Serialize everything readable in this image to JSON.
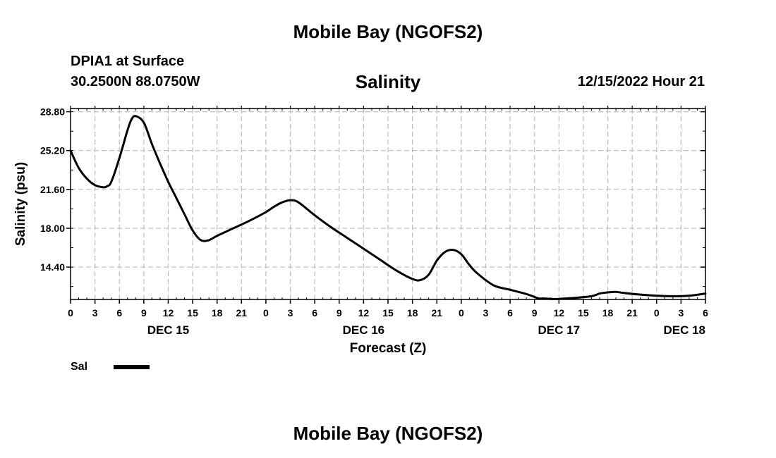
{
  "header": {
    "title": "Mobile Bay (NGOFS2)",
    "station_name": "DPIA1 at Surface",
    "coords": "30.2500N  88.0750W",
    "run_time": "12/15/2022 Hour 21",
    "footer_title": "Mobile Bay (NGOFS2)"
  },
  "chart_data": {
    "type": "line",
    "title": "Salinity",
    "xlabel": "Forecast (Z)",
    "ylabel": "Salinity (psu)",
    "xlim": [
      0,
      78
    ],
    "ylim": [
      11.4,
      29.1
    ],
    "yticks": [
      "28.80",
      "25.20",
      "21.60",
      "18.00",
      "14.40"
    ],
    "ytick_values": [
      28.8,
      25.2,
      21.6,
      18.0,
      14.4
    ],
    "xticks": [
      "0",
      "3",
      "6",
      "9",
      "12",
      "15",
      "18",
      "21",
      "0",
      "3",
      "6",
      "9",
      "12",
      "15",
      "18",
      "21",
      "0",
      "3",
      "6",
      "9",
      "12",
      "15",
      "18",
      "21",
      "0",
      "3",
      "6"
    ],
    "day_labels": [
      {
        "label": "DEC 15",
        "x": 12
      },
      {
        "label": "DEC 16",
        "x": 36
      },
      {
        "label": "DEC 17",
        "x": 60
      },
      {
        "label": "DEC 18",
        "x": 75
      }
    ],
    "grid": true,
    "series": [
      {
        "name": "Sal",
        "color": "#000000",
        "x": [
          0,
          1,
          2,
          3,
          4,
          4.5,
          5,
          6,
          7,
          7.5,
          8,
          9,
          10,
          11,
          12,
          13,
          14,
          15,
          16,
          17,
          18,
          20,
          22,
          24,
          25,
          26,
          27,
          28,
          30,
          32,
          34,
          36,
          38,
          40,
          42,
          43,
          44,
          45,
          46,
          47,
          48,
          49,
          50,
          52,
          54,
          56,
          57.5,
          58,
          59,
          60,
          61,
          62,
          64,
          65,
          66,
          67,
          68,
          70,
          72,
          74,
          76,
          78
        ],
        "values": [
          25.2,
          23.6,
          22.6,
          22.0,
          21.8,
          21.9,
          22.3,
          24.5,
          27.1,
          28.1,
          28.4,
          27.8,
          25.8,
          24.0,
          22.3,
          20.8,
          19.3,
          17.8,
          16.9,
          16.9,
          17.3,
          18.0,
          18.7,
          19.5,
          20.0,
          20.4,
          20.6,
          20.4,
          19.2,
          18.1,
          17.1,
          16.1,
          15.1,
          14.1,
          13.3,
          13.2,
          13.7,
          15.0,
          15.8,
          16.0,
          15.6,
          14.6,
          13.8,
          12.7,
          12.3,
          11.9,
          11.5,
          11.5,
          11.45,
          11.45,
          11.5,
          11.55,
          11.7,
          11.95,
          12.05,
          12.1,
          12.0,
          11.85,
          11.75,
          11.7,
          11.75,
          11.95
        ]
      }
    ]
  }
}
